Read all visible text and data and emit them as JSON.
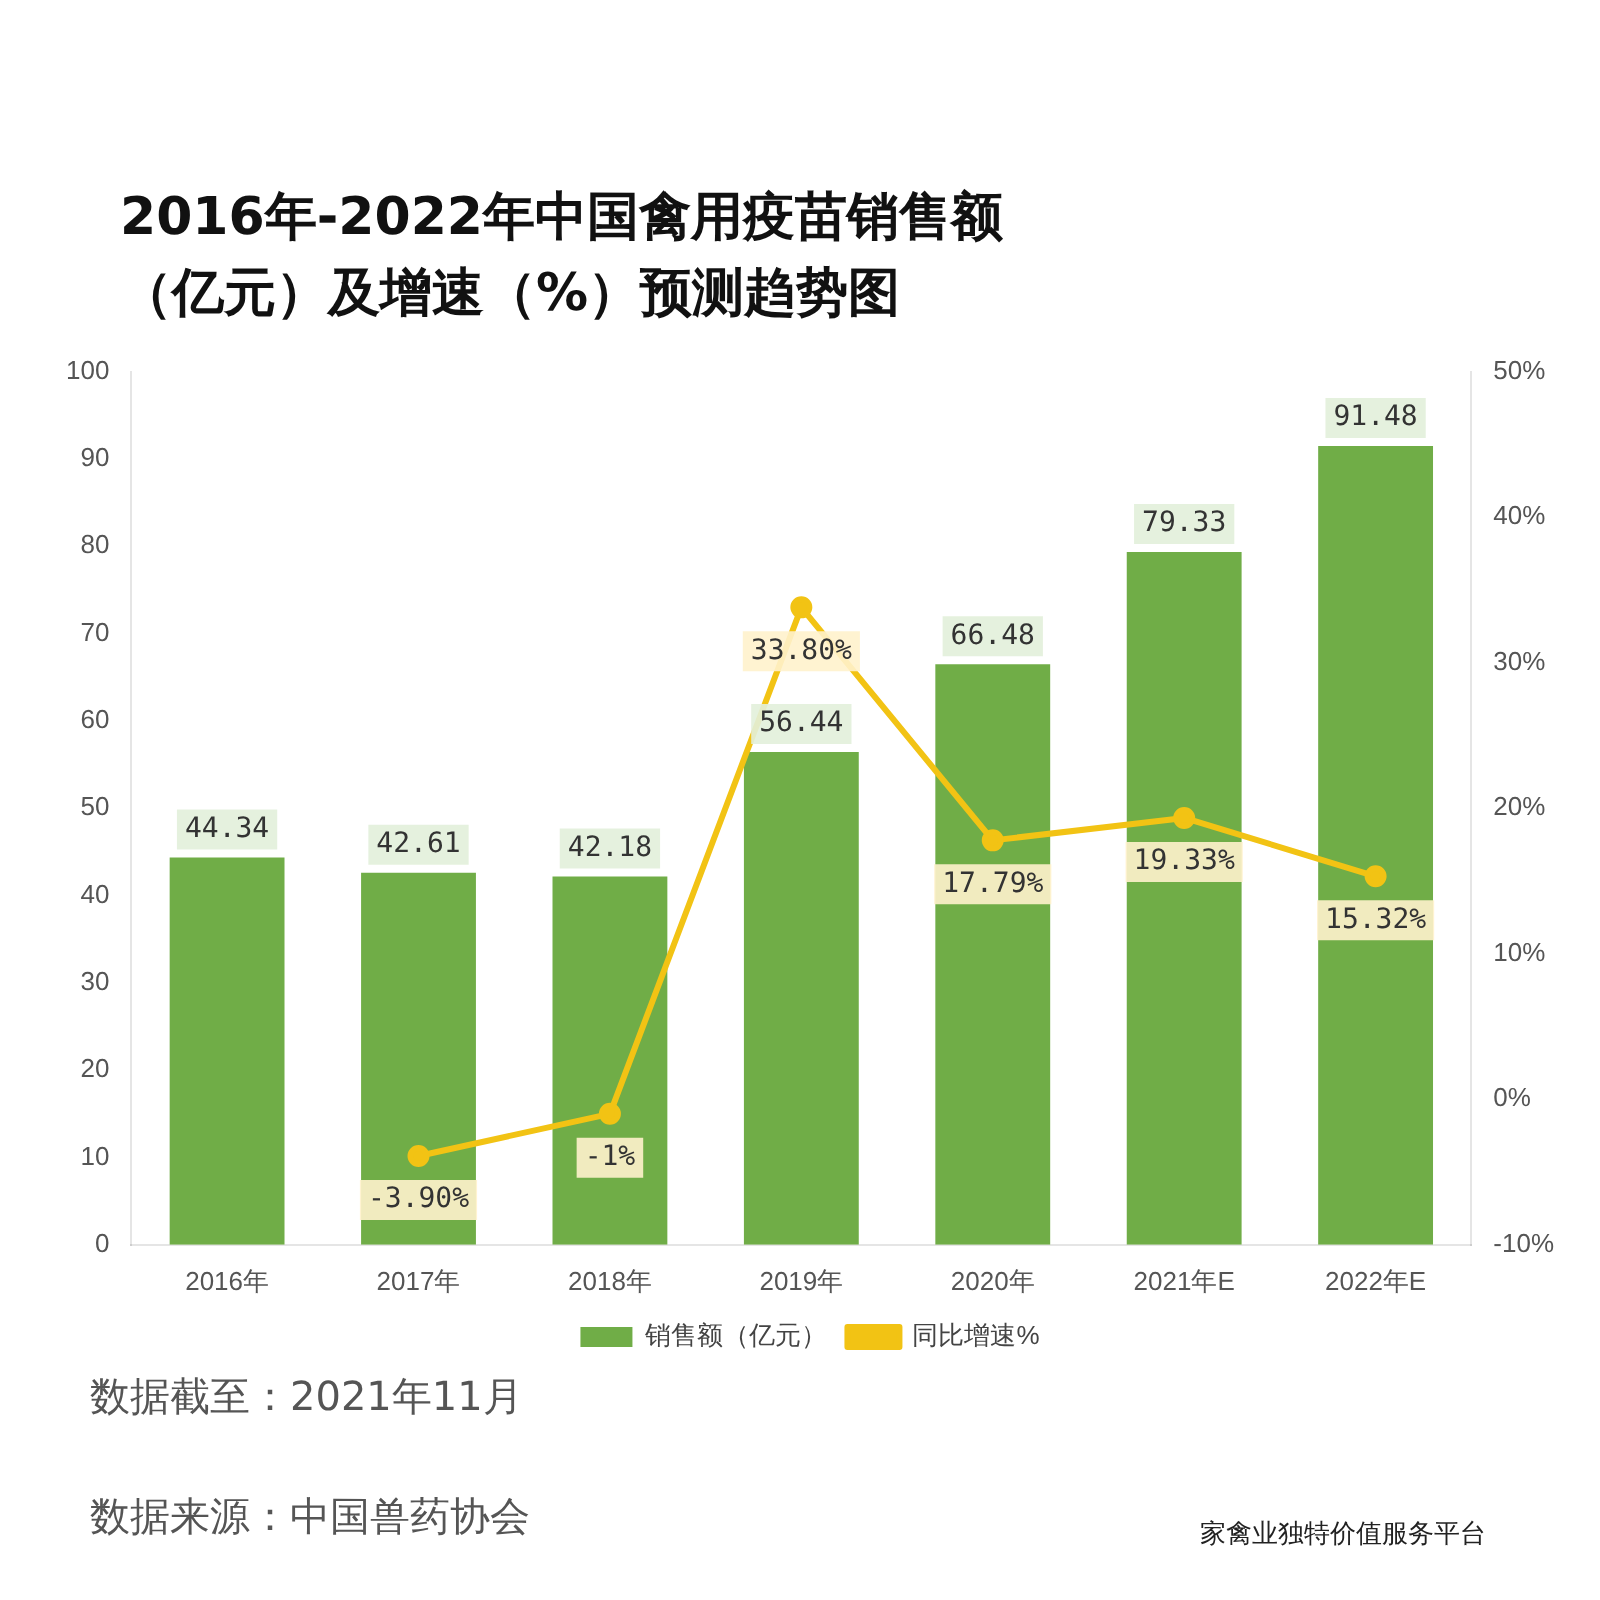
{
  "chart_data": {
    "type": "bar",
    "title": "2016年-2022年中国禽用疫苗销售额（亿元）及增速（%）预测趋势图",
    "categories": [
      "2016年",
      "2017年",
      "2018年",
      "2019年",
      "2020年",
      "2021年E",
      "2022年E"
    ],
    "series": [
      {
        "name": "销售额（亿元）",
        "color": "#70ad47",
        "values": [
          44.34,
          42.61,
          42.18,
          56.44,
          66.48,
          79.33,
          91.48
        ],
        "value_labels": [
          "44.34",
          "42.61",
          "42.18",
          "56.44",
          "66.48",
          "79.33",
          "91.48"
        ]
      },
      {
        "name": "同比增速%",
        "type": "line",
        "axis": "y2",
        "color": "#f2c314",
        "marker": "circle",
        "values": [
          null,
          -3.9,
          -1,
          33.8,
          17.79,
          19.33,
          15.32
        ],
        "value_labels": [
          null,
          "-3.90%",
          "-1%",
          "33.80%",
          "17.79%",
          "19.33%",
          "15.32%"
        ]
      }
    ],
    "ylim": [
      0,
      100
    ],
    "yticks": [
      0,
      10,
      20,
      30,
      40,
      50,
      60,
      70,
      80,
      90,
      100
    ],
    "y2lim": [
      -10,
      50
    ],
    "y2ticks": [
      {
        "value": -10,
        "label": "-10%"
      },
      {
        "value": 0,
        "label": "0%"
      },
      {
        "value": 10,
        "label": "10%"
      },
      {
        "value": 20,
        "label": "20%"
      },
      {
        "value": 30,
        "label": "30%"
      },
      {
        "value": 40,
        "label": "40%"
      },
      {
        "value": 50,
        "label": "50%"
      }
    ],
    "grid": false,
    "legend": "bottom",
    "annotations": [
      "数据截至：2021年11月",
      "数据来源：中国兽药协会",
      "家禽业独特价值服务平台"
    ]
  }
}
